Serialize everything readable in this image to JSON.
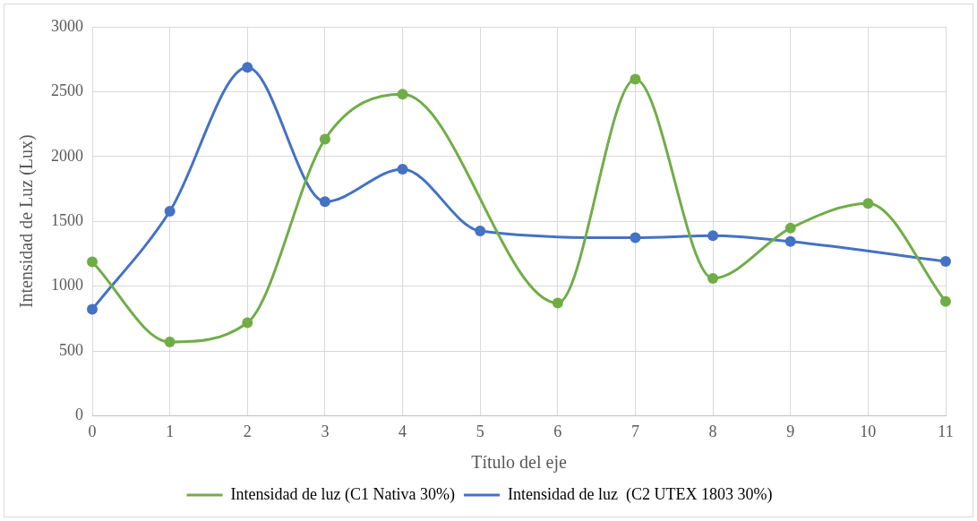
{
  "chart_data": {
    "type": "line",
    "xlabel": "Título del eje",
    "ylabel": "Intensidad de Luz (Lux)",
    "categories": [
      "0",
      "1",
      "2",
      "3",
      "4",
      "5",
      "6",
      "7",
      "8",
      "9",
      "10",
      "11"
    ],
    "series": [
      {
        "name": "Intensidad de luz (C1 Nativa 30%)",
        "color": "#70ad47",
        "values": [
          1187,
          569,
          717,
          2133,
          2480,
          null,
          869,
          2596,
          1060,
          1447,
          1638,
          881
        ]
      },
      {
        "name": "Intensidad de luz  (C2 UTEX 1803 30%)",
        "color": "#4472c4",
        "values": [
          821,
          1577,
          2687,
          1652,
          1902,
          1425,
          null,
          1373,
          1389,
          1344,
          null,
          1190
        ]
      }
    ],
    "ylim": [
      0,
      3000
    ],
    "yticks": [
      0,
      500,
      1000,
      1500,
      2000,
      2500,
      3000
    ],
    "grid": true,
    "legend": "bottom",
    "marker": "circle",
    "line_style": "solid"
  }
}
